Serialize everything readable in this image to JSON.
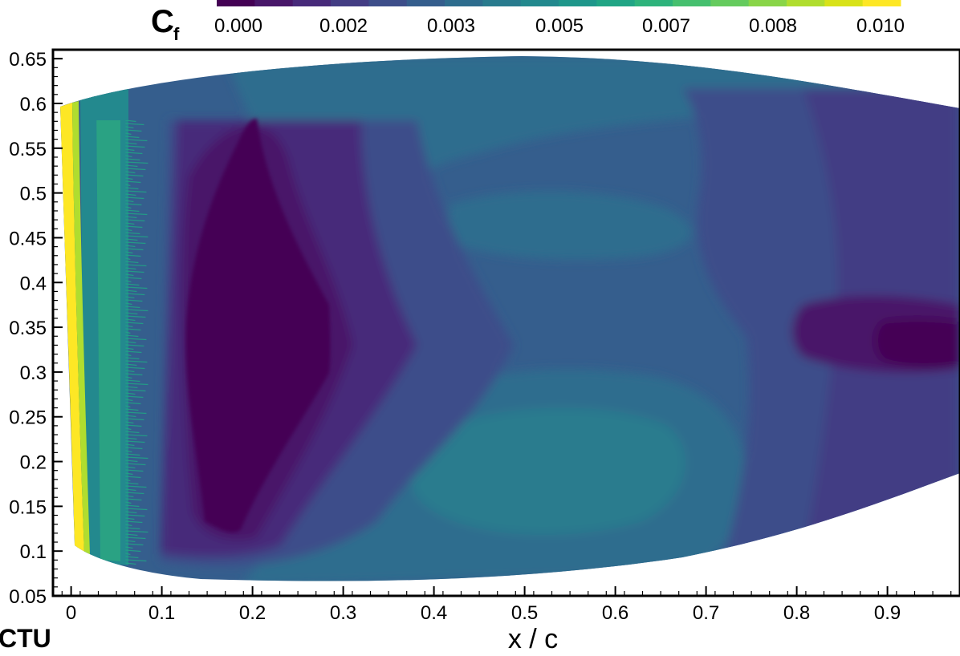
{
  "chart_data": {
    "type": "heatmap",
    "colorbar": {
      "label_main": "C",
      "label_sub": "f",
      "ticks": [
        "0.000",
        "0.002",
        "0.003",
        "0.005",
        "0.007",
        "0.008",
        "0.010"
      ],
      "range": [
        0.0,
        0.01
      ],
      "colors": [
        "#440154",
        "#481769",
        "#472a7a",
        "#433d84",
        "#3d4e8a",
        "#355e8d",
        "#2e6d8e",
        "#297b8e",
        "#23898e",
        "#1f978b",
        "#21a585",
        "#2eb37c",
        "#46c06f",
        "#65cb5e",
        "#89d548",
        "#b0dd2f",
        "#d8e219",
        "#fde725"
      ]
    },
    "xlabel": "x / c",
    "ylabel": "",
    "x_ticks": [
      "0",
      "0.1",
      "0.2",
      "0.3",
      "0.4",
      "0.5",
      "0.6",
      "0.7",
      "0.8",
      "0.9"
    ],
    "y_ticks": [
      "0.65",
      "0.6",
      "0.55",
      "0.5",
      "0.45",
      "0.4",
      "0.35",
      "0.3",
      "0.25",
      "0.2",
      "0.15",
      "0.1",
      "0.05"
    ],
    "xlim": [
      -0.02,
      0.98
    ],
    "ylim": [
      0.05,
      0.66
    ],
    "corner_label": "CTU",
    "regions": [
      {
        "name": "leading-edge",
        "cf": 0.01,
        "color": "#fde725"
      },
      {
        "name": "transition-strip",
        "cf": 0.0075,
        "color": "#2eb37c"
      },
      {
        "name": "laminar-band",
        "cf": 0.005,
        "color": "#23898e"
      },
      {
        "name": "separation-bubble",
        "cf": 0.0,
        "color": "#440154"
      },
      {
        "name": "bubble-rim",
        "cf": 0.001,
        "color": "#472a7a"
      },
      {
        "name": "midchord-upper",
        "cf": 0.003,
        "color": "#355e8d"
      },
      {
        "name": "midchord-lower",
        "cf": 0.004,
        "color": "#2e6d8e"
      },
      {
        "name": "aft-region",
        "cf": 0.002,
        "color": "#433d84"
      },
      {
        "name": "trailing-core",
        "cf": 0.0005,
        "color": "#481769"
      }
    ]
  }
}
